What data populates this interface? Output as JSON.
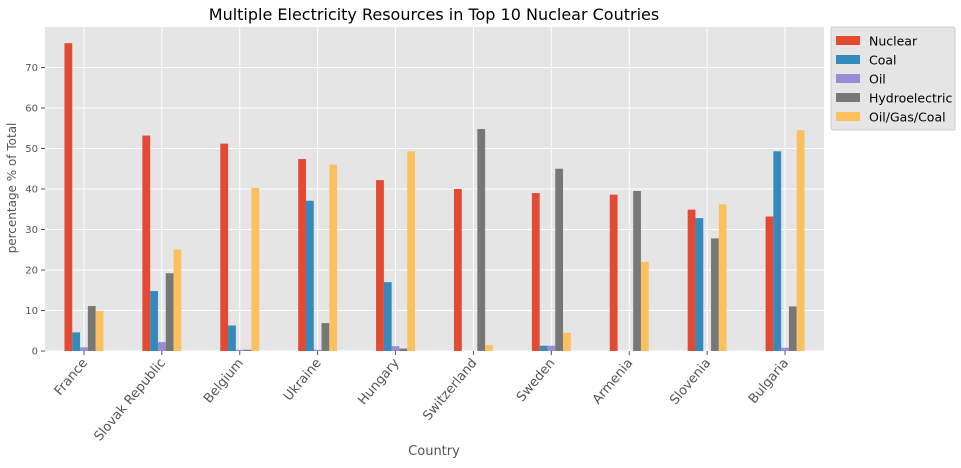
{
  "chart_data": {
    "type": "bar",
    "title": "Multiple Electricity Resources in Top 10 Nuclear Coutries",
    "xlabel": "Country",
    "ylabel": "percentage % of Total",
    "ylim": [
      0,
      80
    ],
    "yticks": [
      0,
      10,
      20,
      30,
      40,
      50,
      60,
      70
    ],
    "grid": true,
    "legend_position": "outside top-right",
    "categories": [
      "France",
      "Slovak Republic",
      "Belgium",
      "Ukraine",
      "Hungary",
      "Switzerland",
      "Sweden",
      "Armenia",
      "Slovenia",
      "Bulgaria"
    ],
    "series": [
      {
        "name": "Nuclear",
        "color": "#E24A33",
        "values": [
          76.0,
          53.2,
          51.2,
          47.4,
          42.2,
          40.0,
          39.0,
          38.6,
          34.9,
          33.2
        ]
      },
      {
        "name": "Coal",
        "color": "#348ABD",
        "values": [
          4.6,
          14.8,
          6.3,
          37.1,
          17.0,
          0.0,
          1.3,
          0.0,
          32.8,
          49.3
        ]
      },
      {
        "name": "Oil",
        "color": "#988ED5",
        "values": [
          0.9,
          2.2,
          0.3,
          0.3,
          1.2,
          0.0,
          1.3,
          0.0,
          0.0,
          0.8
        ]
      },
      {
        "name": "Hydroelectric",
        "color": "#777777",
        "values": [
          11.1,
          19.2,
          0.3,
          6.9,
          0.6,
          54.8,
          45.0,
          39.5,
          27.8,
          11.0
        ]
      },
      {
        "name": "Oil/Gas/Coal",
        "color": "#FBC15E",
        "values": [
          9.9,
          25.1,
          40.3,
          46.0,
          49.3,
          1.5,
          4.5,
          22.0,
          36.2,
          54.5
        ]
      }
    ]
  }
}
